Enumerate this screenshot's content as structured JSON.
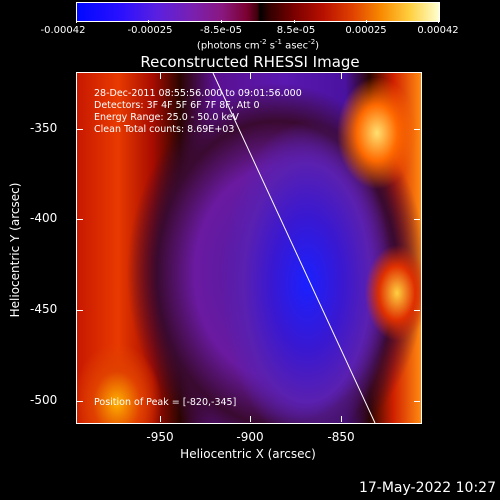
{
  "colorbar": {
    "tick_labels": [
      "-0.00042",
      "-0.00025",
      "-8.5e-05",
      "8.5e-05",
      "0.00025",
      "0.00042"
    ],
    "units_base": "(photons cm",
    "units_exp1": "-2",
    "units_mid1": " s",
    "units_exp2": "-1",
    "units_mid2": " asec",
    "units_exp3": "-2",
    "units_end": ")"
  },
  "title": "Reconstructed RHESSI Image",
  "info": {
    "time": "28-Dec-2011 08:55:56.000 to 09:01:56.000",
    "detectors": "Detectors: 3F 4F 5F 6F 7F 8F, Att 0",
    "energy": "Energy Range: 25.0 - 50.0 keV",
    "clean": "Clean    Total counts: 8.69E+03",
    "peak": "Position of Peak = [-820,-345]"
  },
  "axes": {
    "xlabel": "Heliocentric X (arcsec)",
    "ylabel": "Heliocentric Y (arcsec)",
    "xticks": [
      "-950",
      "-900",
      "-850"
    ],
    "yticks": [
      "-350",
      "-400",
      "-450",
      "-500"
    ]
  },
  "timestamp": "17-May-2022 10:27"
}
